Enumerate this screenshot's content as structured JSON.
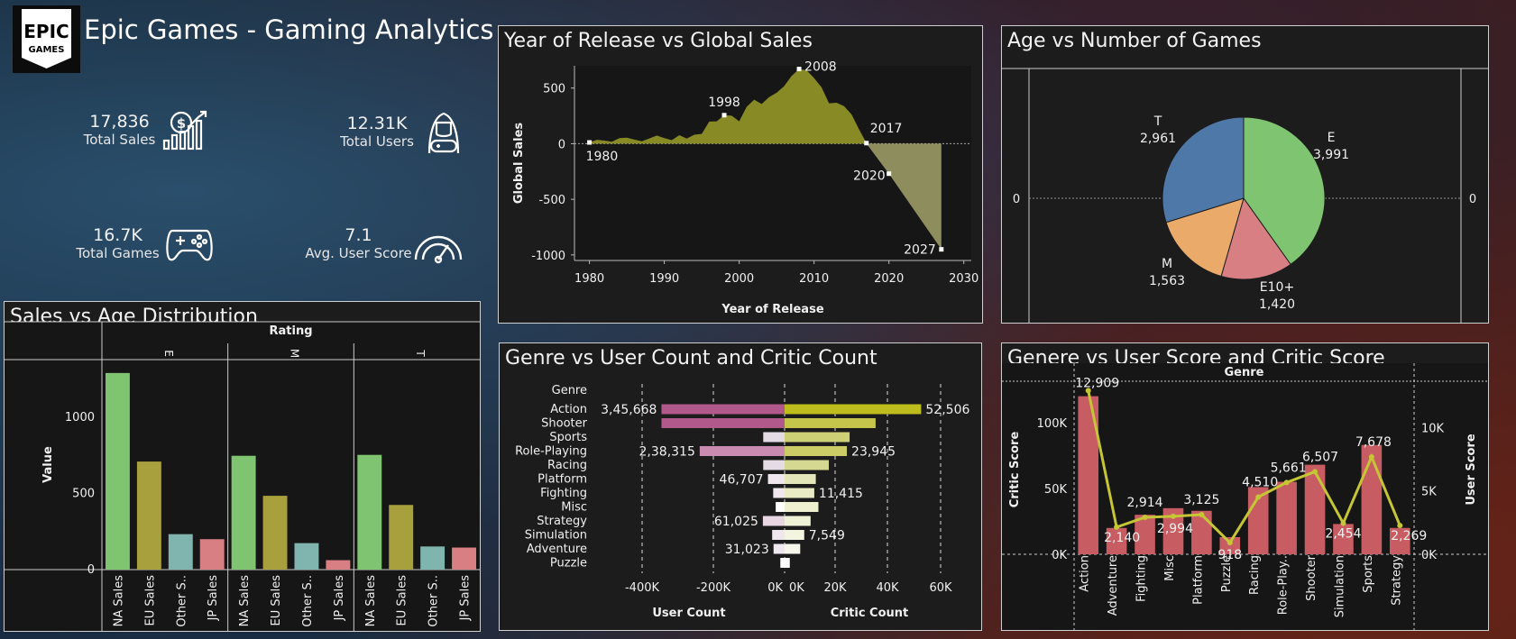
{
  "header": {
    "logo_top": "EPIC",
    "logo_bottom": "GAMES",
    "title": "Epic Games - Gaming Analytics"
  },
  "kpis": [
    {
      "value": "17,836",
      "label": "Total Sales",
      "icon": "sales-growth-icon"
    },
    {
      "value": "12.31K",
      "label": "Total Users",
      "icon": "gamer-user-icon"
    },
    {
      "value": "16.7K",
      "label": "Total Games",
      "icon": "gamepad-icon"
    },
    {
      "value": "7.1",
      "label": "Avg. User Score",
      "icon": "speedometer-icon"
    }
  ],
  "colors": {
    "olive": "#878a25",
    "green": "#7fc471",
    "mustard": "#a8a03c",
    "teal": "#7fb5ae",
    "salmon": "#d87f83",
    "blue": "#4e78a8",
    "orange": "#eaaa6a",
    "pink": "#b0598a",
    "yellow": "#bdbd2a",
    "red": "#c75d62",
    "line": "#c5c536"
  },
  "chart_data": [
    {
      "type": "area",
      "title": "Year of Release vs Global Sales",
      "xlabel": "Year of Release",
      "ylabel": "Global Sales",
      "xlim": [
        1978,
        2031
      ],
      "ylim": [
        -1050,
        700
      ],
      "xticks": [
        1980,
        1990,
        2000,
        2010,
        2020,
        2030
      ],
      "yticks": [
        500,
        0,
        -500,
        -1000
      ],
      "x": [
        1980,
        1981,
        1982,
        1983,
        1984,
        1985,
        1986,
        1987,
        1988,
        1989,
        1990,
        1991,
        1992,
        1993,
        1994,
        1995,
        1996,
        1997,
        1998,
        1999,
        2000,
        2001,
        2002,
        2003,
        2004,
        2005,
        2006,
        2007,
        2008,
        2009,
        2010,
        2011,
        2012,
        2013,
        2014,
        2015,
        2016,
        2017
      ],
      "values": [
        11,
        35,
        28,
        17,
        50,
        54,
        37,
        21,
        47,
        73,
        50,
        32,
        76,
        46,
        80,
        88,
        199,
        201,
        256,
        251,
        201,
        331,
        395,
        357,
        418,
        458,
        517,
        609,
        671,
        659,
        590,
        507,
        363,
        368,
        337,
        264,
        130,
        5
      ],
      "projection": {
        "x": [
          2020,
          2027
        ],
        "values": [
          -270,
          -950
        ]
      },
      "point_labels": [
        {
          "x": 1980,
          "label": "1980"
        },
        {
          "x": 1998,
          "label": "1998"
        },
        {
          "x": 2008,
          "label": "2008"
        },
        {
          "x": 2017,
          "label": "2017"
        },
        {
          "x": 2020,
          "label": "2020"
        },
        {
          "x": 2027,
          "label": "2027"
        }
      ]
    },
    {
      "type": "pie",
      "title": "Age vs Number of Games",
      "axis_value_left": "0",
      "axis_value_right": "0",
      "slices": [
        {
          "label": "E",
          "value": 3991,
          "value_label": "3,991"
        },
        {
          "label": "E10+",
          "value": 1420,
          "value_label": "1,420"
        },
        {
          "label": "M",
          "value": 1563,
          "value_label": "1,563"
        },
        {
          "label": "T",
          "value": 2961,
          "value_label": "2,961"
        }
      ]
    },
    {
      "type": "bar",
      "title": "Sales  vs  Age Distribution",
      "column_header": "Rating",
      "ylabel": "Value",
      "ylim": [
        0,
        1380
      ],
      "yticks": [
        0,
        500,
        1000
      ],
      "groups": [
        "E",
        "M",
        "T"
      ],
      "categories": [
        "NA Sales",
        "EU Sales",
        "Other S..",
        "JP Sales"
      ],
      "series": [
        {
          "group": "E",
          "values": [
            1292,
            710,
            233,
            200
          ]
        },
        {
          "group": "M",
          "values": [
            748,
            485,
            174,
            62
          ]
        },
        {
          "group": "T",
          "values": [
            754,
            425,
            152,
            145
          ]
        }
      ]
    },
    {
      "type": "bar",
      "title": "Genre  vs  User  Count and Critic Count",
      "row_header": "Genre",
      "categories": [
        "Action",
        "Shooter",
        "Sports",
        "Role-Playing",
        "Racing",
        "Platform",
        "Fighting",
        "Misc",
        "Strategy",
        "Simulation",
        "Adventure",
        "Puzzle"
      ],
      "series": [
        {
          "name": "User Count",
          "values": [
            345668,
            345668,
            60000,
            238315,
            60000,
            46707,
            32000,
            25000,
            61025,
            35000,
            31023,
            12000
          ],
          "labels": [
            "3,45,668",
            "",
            "",
            "2,38,315",
            "",
            "46,707",
            "",
            "",
            "61,025",
            "",
            "31,023",
            ""
          ]
        },
        {
          "name": "Critic Count",
          "values": [
            52506,
            35000,
            25000,
            23945,
            17000,
            12000,
            11415,
            13000,
            10000,
            7549,
            6000,
            2000
          ],
          "labels": [
            "52,506",
            "",
            "",
            "23,945",
            "",
            "",
            "11,415",
            "",
            "",
            "7,549",
            "",
            ""
          ]
        }
      ],
      "user_ticks": [
        "-400K",
        "-200K",
        "0K"
      ],
      "critic_ticks": [
        "0K",
        "20K",
        "40K",
        "60K"
      ],
      "xlabels": [
        "User Count",
        "Critic Count"
      ]
    },
    {
      "type": "bar",
      "title": "Genere  vs  User Score and Critic Score",
      "column_header": "Genre",
      "categories": [
        "Action",
        "Adventure",
        "Fighting",
        "Misc",
        "Platform",
        "Puzzle",
        "Racing",
        "Role-Play..",
        "Shooter",
        "Simulation",
        "Sports",
        "Strategy"
      ],
      "series": [
        {
          "name": "Critic Score",
          "values": [
            120000,
            20000,
            30000,
            35000,
            33000,
            13000,
            51000,
            55000,
            68000,
            23000,
            83000,
            20000
          ],
          "axis_ticks": [
            "100K",
            "50K",
            "0K"
          ]
        },
        {
          "name": "User Score",
          "values": [
            12909,
            2140,
            2914,
            2994,
            3125,
            918,
            4510,
            5661,
            6507,
            2454,
            7678,
            2269
          ],
          "labels": [
            "12,909",
            "2,140",
            "2,914",
            "2,994",
            "3,125",
            "918",
            "4,510",
            "5,661",
            "6,507",
            "2,454",
            "7,678",
            "2,269"
          ],
          "axis_ticks": [
            "10K",
            "5K",
            "0K"
          ]
        }
      ]
    }
  ]
}
